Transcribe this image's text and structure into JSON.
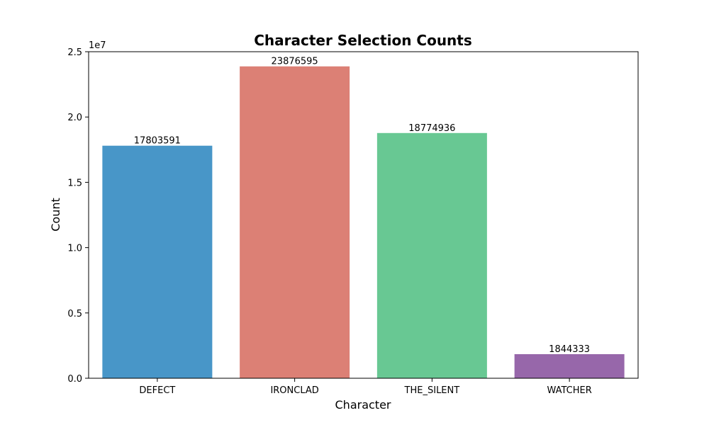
{
  "chart_data": {
    "type": "bar",
    "title": "Character Selection Counts",
    "xlabel": "Character",
    "ylabel": "Count",
    "categories": [
      "DEFECT",
      "IRONCLAD",
      "THE_SILENT",
      "WATCHER"
    ],
    "values": [
      17803591,
      23876595,
      18774936,
      1844333
    ],
    "colors": [
      "#4896c8",
      "#dc8075",
      "#68c893",
      "#9767aa"
    ],
    "ylim": [
      0,
      25000000
    ],
    "yticks": [
      0,
      5000000,
      10000000,
      15000000,
      20000000,
      25000000
    ],
    "ytick_labels": [
      "0.0",
      "0.5",
      "1.0",
      "1.5",
      "2.0",
      "2.5"
    ],
    "y_offset_label": "1e7",
    "grid": false,
    "legend": false
  }
}
